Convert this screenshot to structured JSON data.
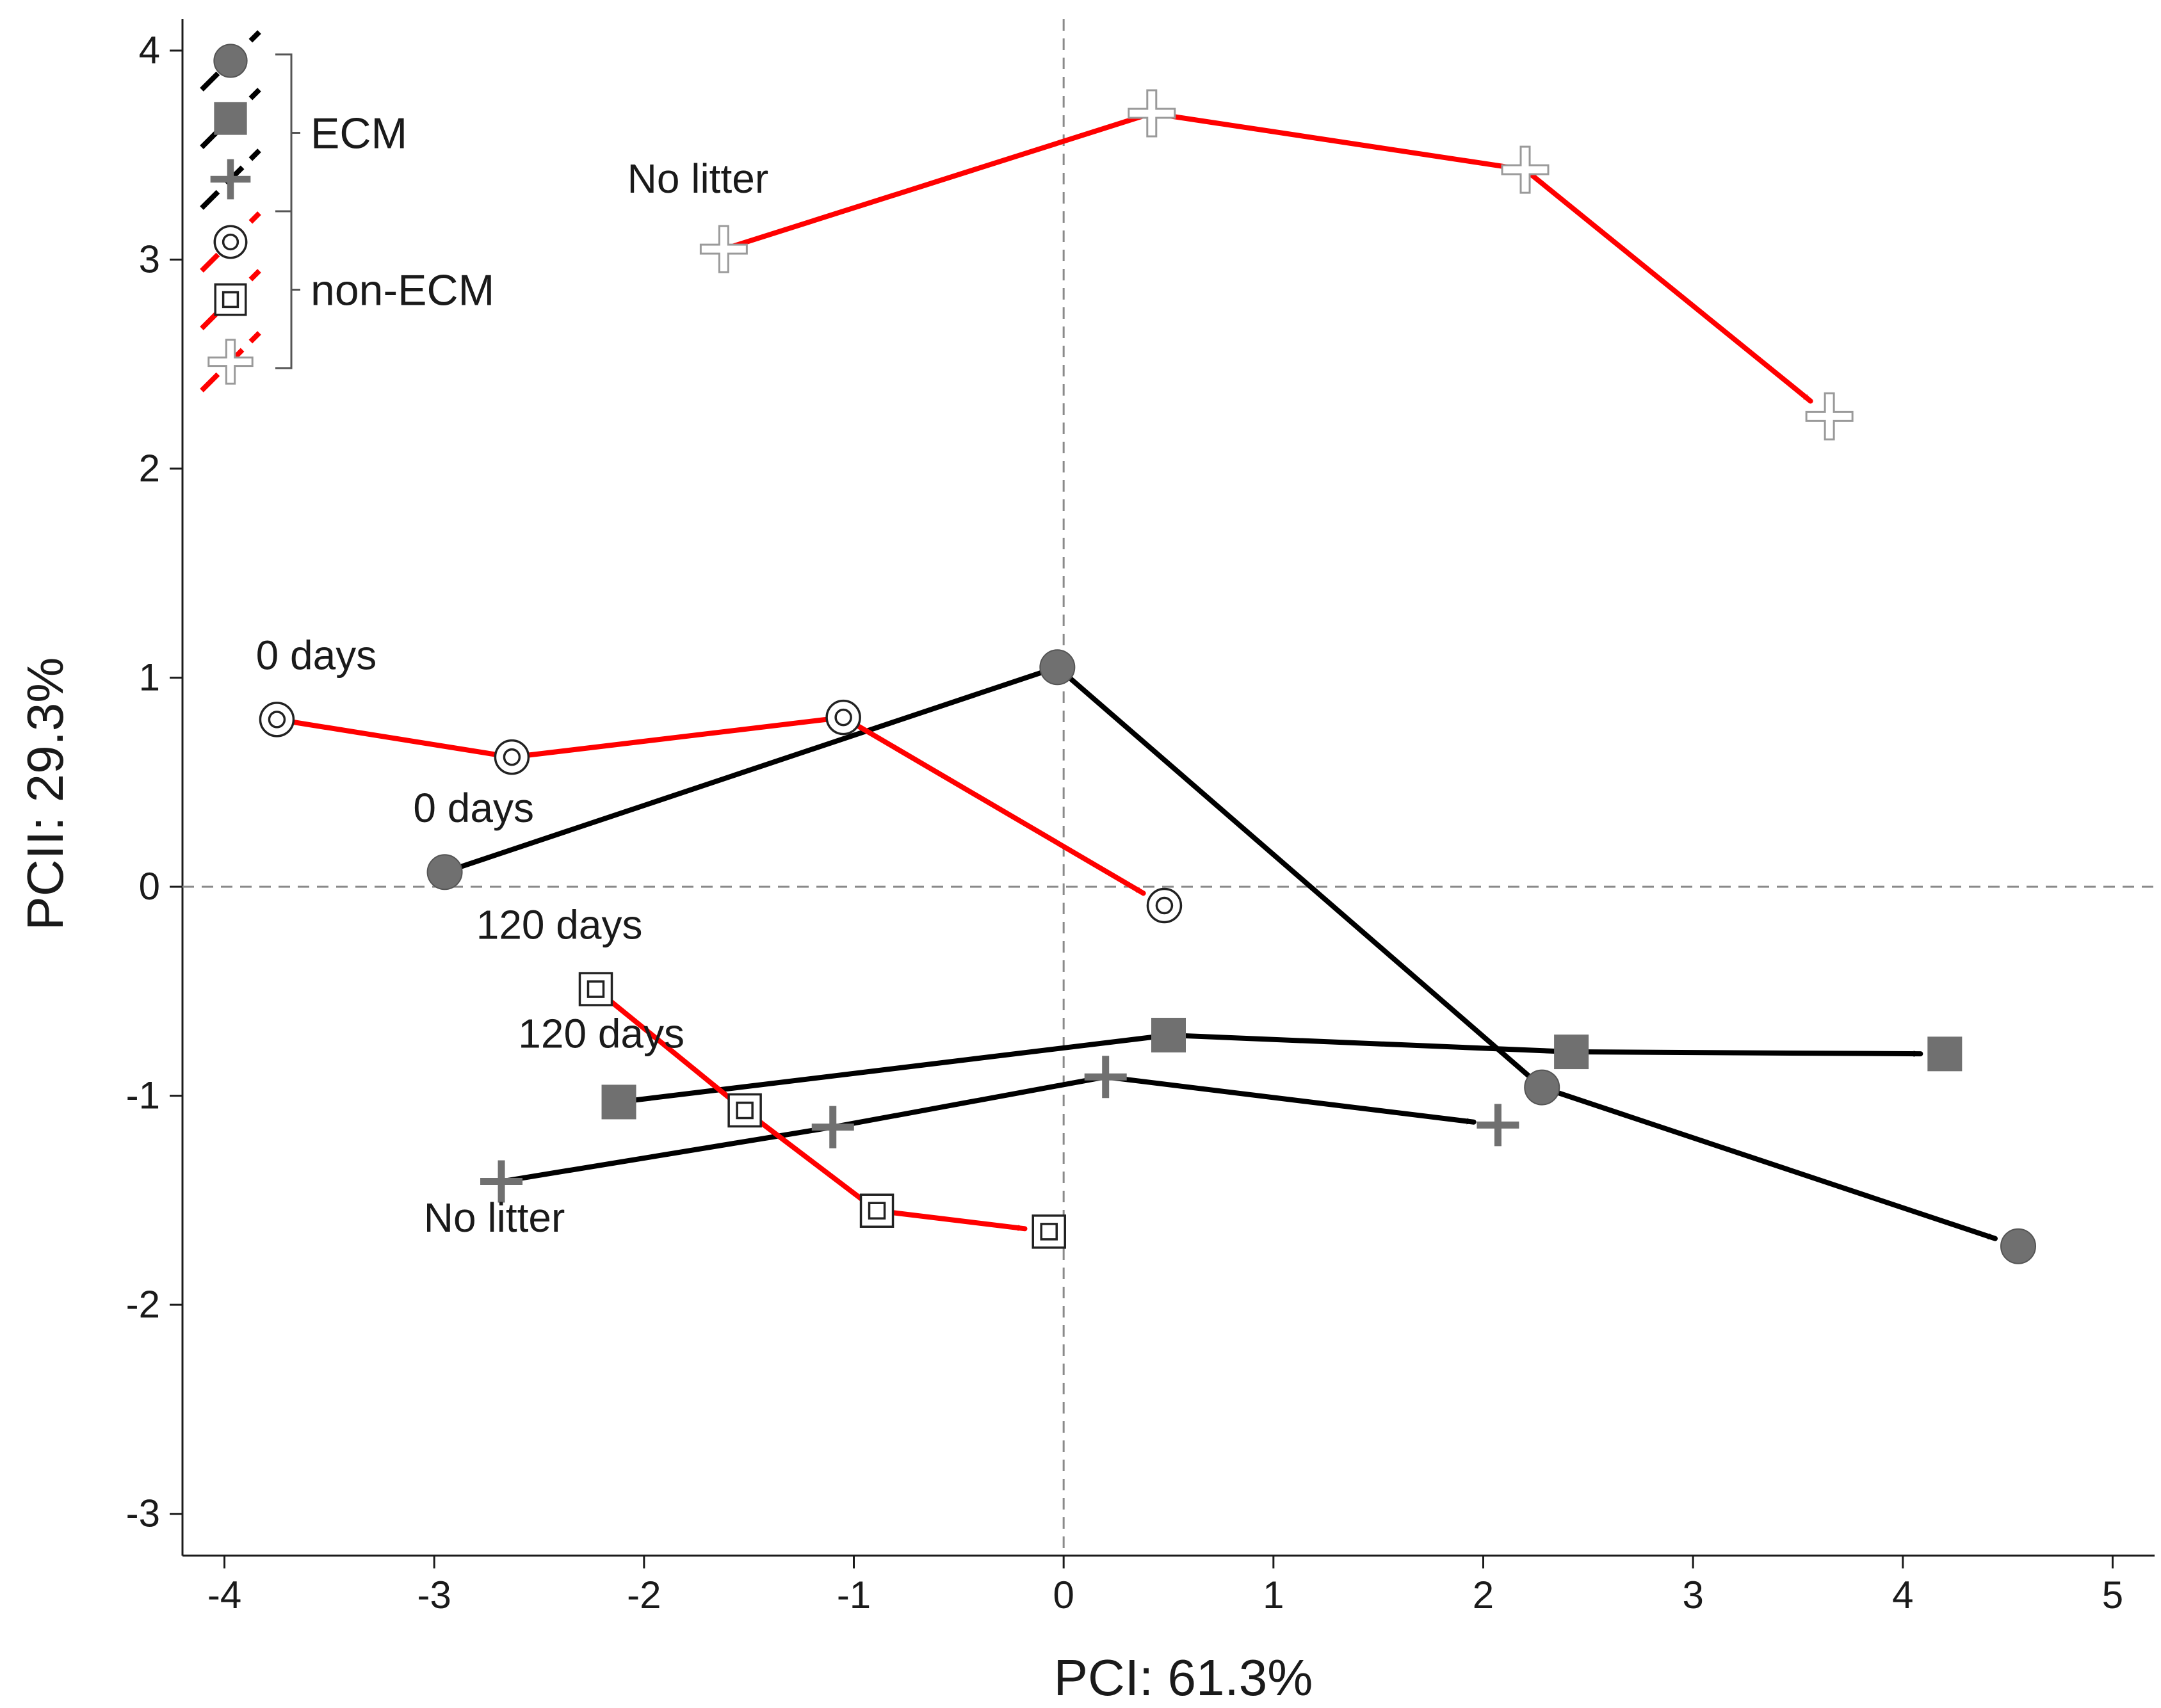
{
  "chart_data": {
    "type": "scatter",
    "title": "",
    "xlabel": "PCI: 61.3%",
    "ylabel": "PCII: 29.3%",
    "xlim": [
      -4.2,
      5.2
    ],
    "ylim": [
      -3.2,
      4.15
    ],
    "xticks": [
      -4,
      -3,
      -2,
      -1,
      0,
      1,
      2,
      3,
      4,
      5
    ],
    "yticks": [
      4,
      3,
      2,
      1,
      0,
      -1,
      -2,
      -3
    ],
    "xtick_labels": [
      "-4",
      "-3",
      "-2",
      "-1",
      "0",
      "1",
      "2",
      "3",
      "4",
      "5"
    ],
    "ytick_labels": [
      "4",
      "3",
      "2",
      "1",
      "0",
      "-1",
      "-2",
      "-3"
    ],
    "reference_lines": {
      "x": 0,
      "y": 0
    },
    "series": [
      {
        "name": "ECM circle",
        "group": "ECM",
        "marker": "filled-circle",
        "color": "#000000",
        "x": [
          -2.95,
          -0.03,
          2.28,
          4.55
        ],
        "y": [
          0.07,
          1.05,
          -0.96,
          -1.72
        ]
      },
      {
        "name": "ECM square",
        "group": "ECM",
        "marker": "filled-square",
        "color": "#000000",
        "x": [
          -2.12,
          0.5,
          2.42,
          4.2
        ],
        "y": [
          -1.03,
          -0.71,
          -0.79,
          -0.8
        ]
      },
      {
        "name": "ECM plus",
        "group": "ECM",
        "marker": "gray-plus",
        "color": "#000000",
        "x": [
          -2.68,
          -1.1,
          0.2,
          2.07
        ],
        "y": [
          -1.41,
          -1.15,
          -0.91,
          -1.14
        ]
      },
      {
        "name": "non-ECM circle",
        "group": "non-ECM",
        "marker": "open-double-circle",
        "color": "#ff0000",
        "x": [
          -3.75,
          -2.63,
          -1.05,
          0.48
        ],
        "y": [
          0.8,
          0.62,
          0.81,
          -0.09
        ]
      },
      {
        "name": "non-ECM square",
        "group": "non-ECM",
        "marker": "open-double-square",
        "color": "#ff0000",
        "x": [
          -2.23,
          -1.52,
          -0.89,
          -0.07
        ],
        "y": [
          -0.49,
          -1.07,
          -1.55,
          -1.65
        ]
      },
      {
        "name": "non-ECM plus",
        "group": "non-ECM",
        "marker": "open-plus",
        "color": "#ff0000",
        "x": [
          -1.62,
          0.42,
          2.2,
          3.65
        ],
        "y": [
          3.05,
          3.7,
          3.43,
          2.25
        ]
      }
    ],
    "annotations": [
      {
        "text": "No litter",
        "x": -2.08,
        "y": 3.32
      },
      {
        "text": "0 days",
        "x": -3.85,
        "y": 1.04
      },
      {
        "text": "0 days",
        "x": -3.1,
        "y": 0.31
      },
      {
        "text": "120 days",
        "x": -2.8,
        "y": -0.25
      },
      {
        "text": "120 days",
        "x": -2.6,
        "y": -0.77
      },
      {
        "text": "No litter",
        "x": -3.05,
        "y": -1.65
      }
    ],
    "legend": {
      "position": "top-left",
      "groups": [
        {
          "label": "ECM",
          "markers": [
            "filled-circle",
            "filled-square",
            "gray-plus"
          ],
          "line_color": "#000000"
        },
        {
          "label": "non-ECM",
          "markers": [
            "open-double-circle",
            "open-double-square",
            "open-plus"
          ],
          "line_color": "#ff0000"
        }
      ]
    }
  }
}
